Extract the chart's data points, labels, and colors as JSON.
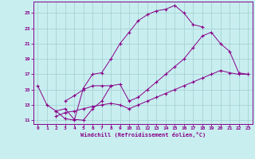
{
  "xlabel": "Windchill (Refroidissement éolien,°C)",
  "bg_color": "#c8eef0",
  "line_color": "#880088",
  "grid_color": "#a0cece",
  "xlim": [
    -0.5,
    23.5
  ],
  "ylim": [
    10.5,
    26.5
  ],
  "xticks": [
    0,
    1,
    2,
    3,
    4,
    5,
    6,
    7,
    8,
    9,
    10,
    11,
    12,
    13,
    14,
    15,
    16,
    17,
    18,
    19,
    20,
    21,
    22,
    23
  ],
  "yticks": [
    11,
    13,
    15,
    17,
    19,
    21,
    23,
    25
  ],
  "lines": [
    {
      "x": [
        0,
        1,
        2,
        3,
        4,
        5,
        6,
        7,
        8,
        9,
        10,
        11,
        12,
        13,
        14,
        15,
        16,
        17,
        18
      ],
      "y": [
        15.5,
        13.0,
        12.2,
        11.2,
        11.0,
        15.2,
        17.0,
        17.2,
        19.0,
        21.0,
        22.5,
        24.0,
        24.8,
        25.3,
        25.5,
        26.0,
        25.0,
        23.5,
        23.2
      ]
    },
    {
      "x": [
        2,
        3,
        4,
        5,
        6,
        7,
        8
      ],
      "y": [
        12.2,
        12.5,
        11.1,
        11.0,
        12.5,
        13.5,
        15.5
      ]
    },
    {
      "x": [
        3,
        4,
        5,
        6,
        7,
        8,
        9,
        10,
        11,
        12,
        13,
        14,
        15,
        16,
        17,
        18,
        19,
        20,
        21,
        22,
        23
      ],
      "y": [
        13.5,
        14.2,
        15.0,
        15.5,
        15.5,
        15.5,
        15.7,
        13.5,
        14.0,
        15.0,
        16.0,
        17.0,
        18.0,
        19.0,
        20.5,
        22.0,
        22.5,
        21.0,
        20.0,
        17.2,
        17.0
      ]
    },
    {
      "x": [
        2,
        3,
        4,
        5,
        6,
        7,
        8,
        9,
        10,
        11,
        12,
        13,
        14,
        15,
        16,
        17,
        18,
        19,
        20,
        21,
        22,
        23
      ],
      "y": [
        11.5,
        12.0,
        12.2,
        12.5,
        12.8,
        13.0,
        13.2,
        13.0,
        12.5,
        13.0,
        13.5,
        14.0,
        14.5,
        15.0,
        15.5,
        16.0,
        16.5,
        17.0,
        17.5,
        17.2,
        17.0,
        17.0
      ]
    }
  ]
}
